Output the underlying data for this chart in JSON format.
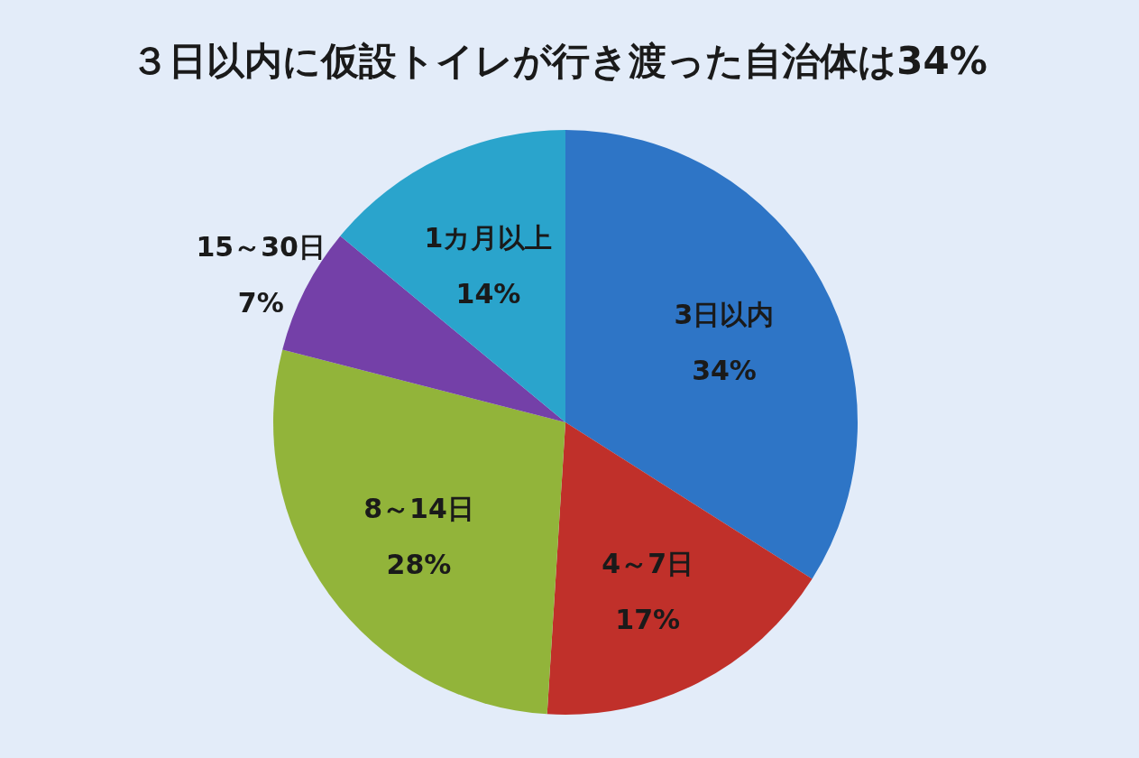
{
  "chart_data": {
    "type": "pie",
    "title": "３日以内に仮設トイレが行き渡った自治体は34%",
    "categories": [
      "3日以内",
      "4～7日",
      "8～14日",
      "15～30日",
      "1カ月以上"
    ],
    "values": [
      34,
      17,
      28,
      7,
      14
    ],
    "colors": [
      "#2e75c6",
      "#c0302a",
      "#92b43a",
      "#7440a8",
      "#2aa4cc"
    ],
    "value_labels": [
      "34%",
      "17%",
      "28%",
      "7%",
      "14%"
    ],
    "legend": false
  }
}
